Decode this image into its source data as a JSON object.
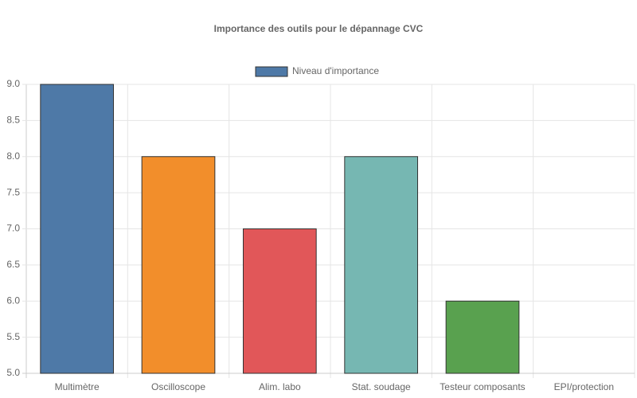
{
  "chart_data": {
    "type": "bar",
    "title": "Importance des outils pour le dépannage CVC",
    "legend": "Niveau d'importance",
    "legend_color": "#4e79a7",
    "categories": [
      "Multimètre",
      "Oscilloscope",
      "Alim. labo",
      "Stat. soudage",
      "Testeur composants",
      "EPI/protection"
    ],
    "values": [
      9,
      8,
      7,
      8,
      6,
      5
    ],
    "colors": [
      "#4e79a7",
      "#f28e2b",
      "#e15759",
      "#76b7b2",
      "#59a14f",
      "#edc948"
    ],
    "ylim": [
      5,
      9
    ],
    "yticks": [
      {
        "value": 5,
        "label": "5.0"
      },
      5.5,
      {
        "value": 6,
        "label": "6.0"
      },
      6.5,
      {
        "value": 7,
        "label": "7.0"
      },
      7.5,
      {
        "value": 8,
        "label": "8.0"
      },
      8.5,
      {
        "value": 9,
        "label": "9.0"
      }
    ],
    "grid": true
  }
}
